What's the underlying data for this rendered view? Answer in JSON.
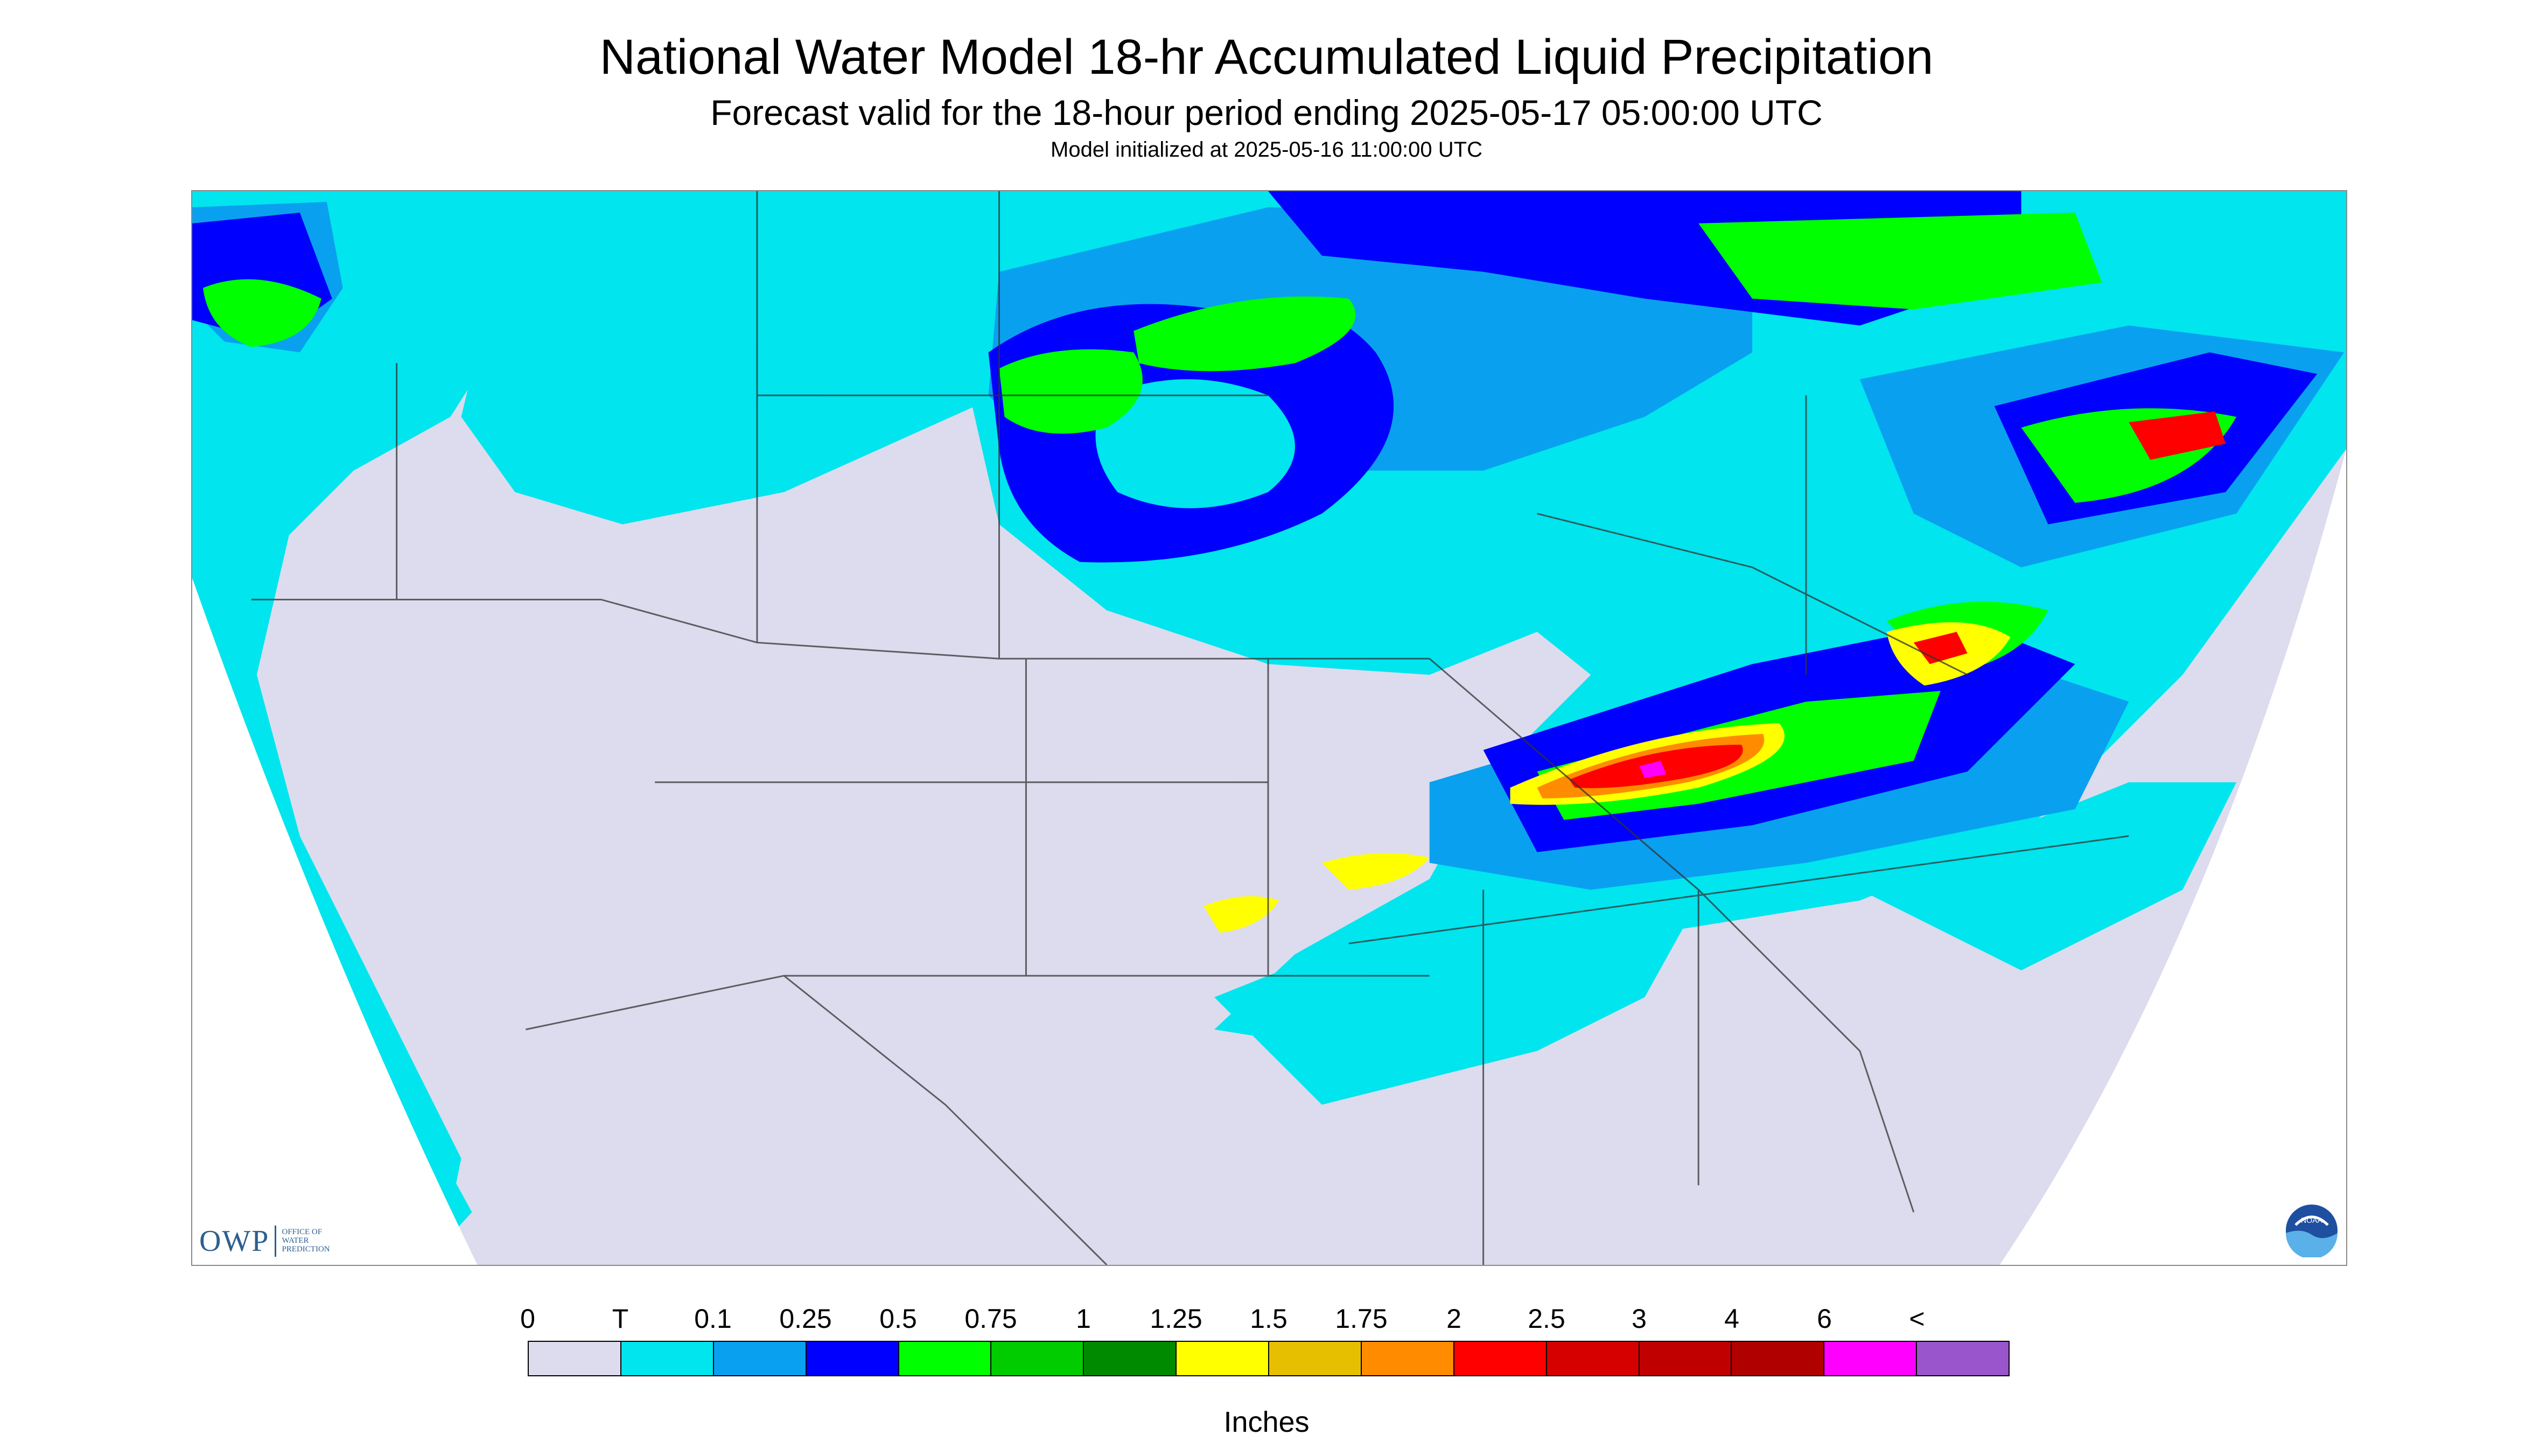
{
  "header": {
    "title": "National Water Model 18-hr Accumulated Liquid Precipitation",
    "subtitle": "Forecast valid for the 18-hour period ending 2025-05-17 05:00:00 UTC",
    "init": "Model initialized at 2025-05-16 11:00:00 UTC"
  },
  "logos": {
    "owp_main": "OWP",
    "owp_sub": [
      "OFFICE OF",
      "WATER",
      "PREDICTION"
    ],
    "noaa_text": "NOAA"
  },
  "legend": {
    "labels": [
      "0",
      "T",
      "0.1",
      "0.25",
      "0.5",
      "0.75",
      "1",
      "1.25",
      "1.5",
      "1.75",
      "2",
      "2.5",
      "3",
      "4",
      "6",
      "<"
    ],
    "colors": [
      "#dcdcee",
      "#00e5ee",
      "#0aa0f0",
      "#0000ff",
      "#00ff00",
      "#00cc00",
      "#008a00",
      "#ffff00",
      "#e6c000",
      "#ff8c00",
      "#ff0000",
      "#d60000",
      "#c00000",
      "#b00000",
      "#ff00ff",
      "#9955cc"
    ],
    "units": "Inches"
  },
  "map": {
    "background": "#dcdcee",
    "precip_regions": [
      {
        "name": "pacific-northwest",
        "level": "T"
      },
      {
        "name": "northern-rockies-plains",
        "level": "0.1"
      },
      {
        "name": "upper-midwest-low",
        "level": "0.5"
      },
      {
        "name": "canadian-north",
        "level": "0.75"
      },
      {
        "name": "ohio-valley-band",
        "level": "2"
      },
      {
        "name": "mid-atlantic",
        "level": "1.5"
      },
      {
        "name": "new-england",
        "level": "1"
      },
      {
        "name": "gulf-coast",
        "level": "T"
      }
    ]
  }
}
